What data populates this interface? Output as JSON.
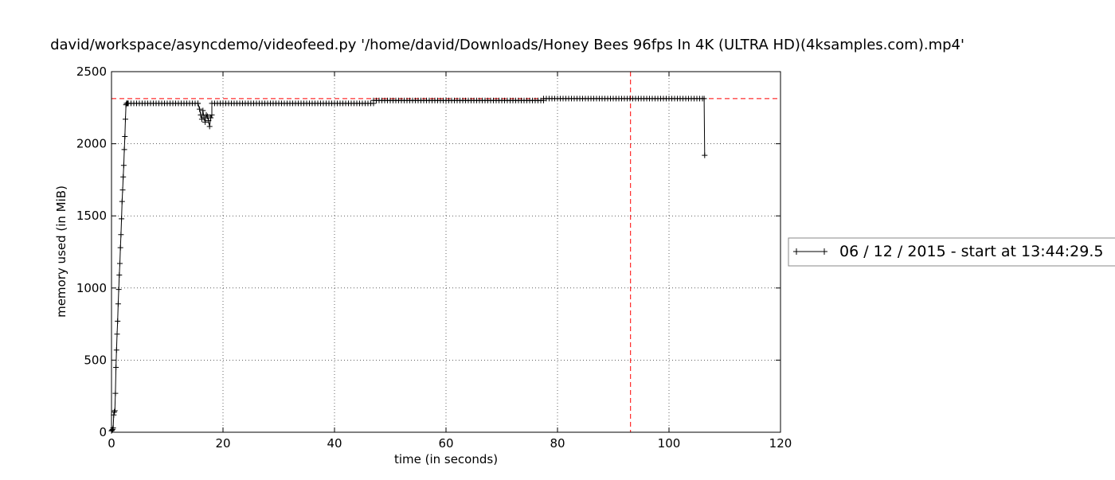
{
  "chart_data": {
    "type": "line",
    "title": "david/workspace/asyncdemo/videofeed.py '/home/david/Downloads/Honey Bees 96fps In 4K (ULTRA HD)(4ksamples.com).mp4'",
    "xlabel": "time (in seconds)",
    "ylabel": "memory used (in MiB)",
    "xlim": [
      0,
      120
    ],
    "ylim": [
      0,
      2500
    ],
    "xticks": [
      0,
      20,
      40,
      60,
      80,
      100,
      120
    ],
    "yticks": [
      0,
      500,
      1000,
      1500,
      2000,
      2500
    ],
    "xtick_labels": [
      "0",
      "20",
      "40",
      "60",
      "80",
      "100",
      "120"
    ],
    "ytick_labels": [
      "0",
      "500",
      "1000",
      "1500",
      "2000",
      "2500"
    ],
    "grid": true,
    "legend_position": "right, outside plot",
    "series": [
      {
        "name": "06 / 12 / 2015 - start at 13:44:29.5",
        "color": "#000000",
        "marker": "+",
        "segments": [
          {
            "x": [
              0.0,
              0.1,
              0.2,
              0.3,
              0.4,
              0.5,
              0.6,
              0.7,
              0.8,
              0.9,
              1.0,
              1.1,
              1.2,
              1.3,
              1.4,
              1.5,
              1.6,
              1.7,
              1.8,
              1.9,
              2.0,
              2.1,
              2.2,
              2.3,
              2.4,
              2.5,
              2.6,
              2.7,
              2.8,
              2.9,
              3.0
            ],
            "y": [
              10,
              15,
              20,
              30,
              120,
              140,
              150,
              270,
              450,
              570,
              680,
              770,
              890,
              990,
              1090,
              1170,
              1280,
              1370,
              1480,
              1600,
              1680,
              1770,
              1850,
              1960,
              2050,
              2170,
              2270,
              2280,
              2280,
              2280,
              2280
            ]
          },
          {
            "x_start": 3.0,
            "x_end": 15.5,
            "step": 0.5,
            "y": 2280
          },
          {
            "x": [
              15.5,
              15.8,
              16.0,
              16.2,
              16.4,
              16.6,
              16.8,
              17.0,
              17.2,
              17.4,
              17.6,
              17.8,
              18.0
            ],
            "y": [
              2280,
              2240,
              2200,
              2170,
              2230,
              2180,
              2150,
              2200,
              2190,
              2160,
              2120,
              2180,
              2200
            ]
          },
          {
            "x_start": 18.0,
            "x_end": 47.0,
            "step": 0.5,
            "y": 2280
          },
          {
            "x_start": 47.0,
            "x_end": 77.5,
            "step": 0.5,
            "y": 2300
          },
          {
            "x_start": 77.5,
            "x_end": 106.3,
            "step": 0.5,
            "y": 2313
          },
          {
            "x": [
              106.3,
              106.4
            ],
            "y": [
              2313,
              1920
            ]
          }
        ]
      }
    ],
    "reference_lines": [
      {
        "orientation": "horizontal",
        "value": 2313,
        "color": "#ff0000",
        "style": "dashed"
      },
      {
        "orientation": "vertical",
        "value": 93.1,
        "color": "#ff0000",
        "style": "dashed"
      }
    ]
  }
}
